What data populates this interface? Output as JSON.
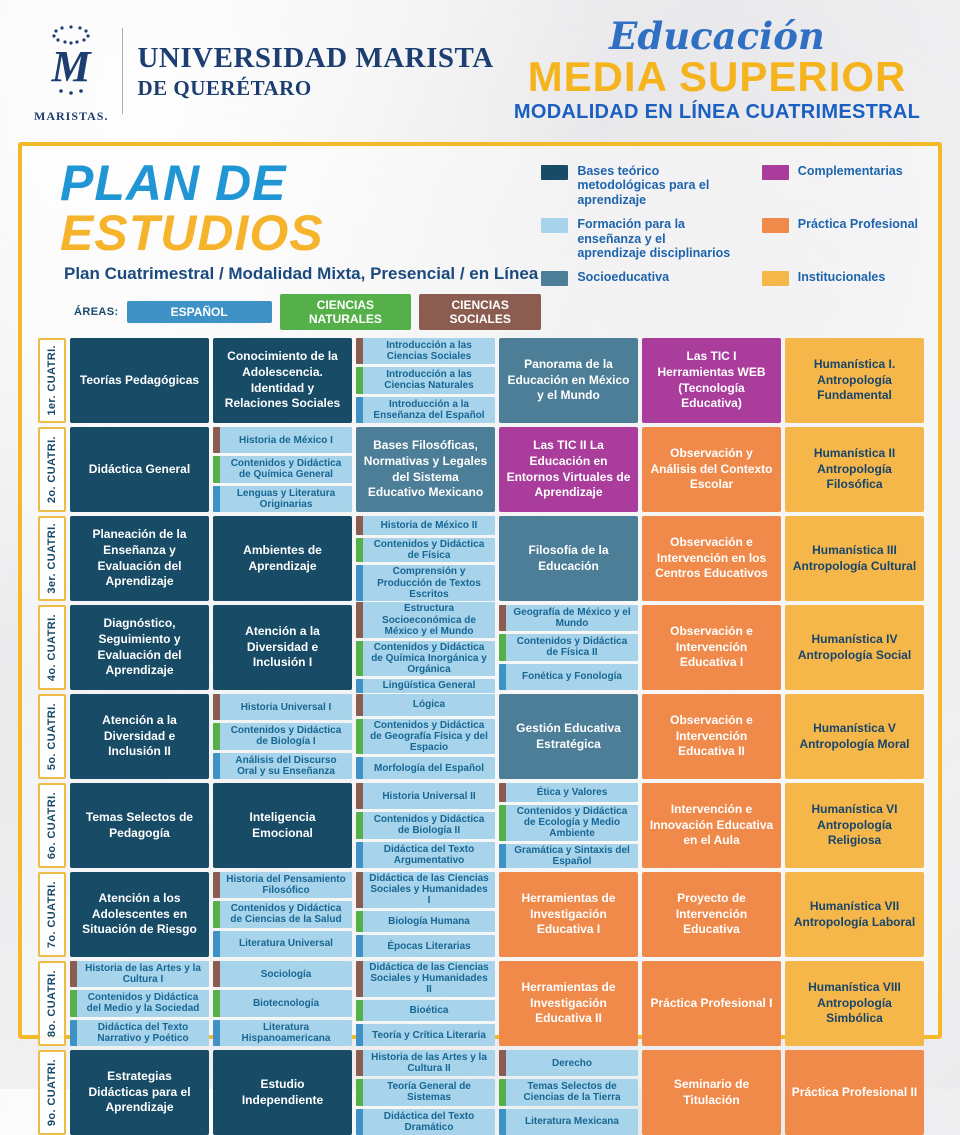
{
  "header": {
    "university_name": "Universidad Marista",
    "university_location": "de Querétaro",
    "logo_caption": "MARISTAS.",
    "program_script": "Educación",
    "program_level": "MEDIA SUPERIOR",
    "program_modality": "MODALIDAD EN LÍNEA CUATRIMESTRAL"
  },
  "plan": {
    "title_part1": "PLAN DE",
    "title_part2": "ESTUDIOS",
    "subtitle": "Plan Cuatrimestral / Modalidad Mixta, Presencial / en Línea",
    "areas_label": "ÁREAS:",
    "areas": [
      {
        "id": "espanol",
        "label": "ESPAÑOL",
        "color": "#3e92c5"
      },
      {
        "id": "naturales",
        "label": "CIENCIAS NATURALES",
        "color": "#55b04a"
      },
      {
        "id": "sociales",
        "label": "CIENCIAS SOCIALES",
        "color": "#8a5d50"
      }
    ],
    "legend": [
      {
        "id": "bases",
        "label": "Bases teórico metodológicas para el aprendizaje",
        "color": "#174b66"
      },
      {
        "id": "formacion",
        "label": "Formación para la enseñanza y el aprendizaje disciplinarios",
        "color": "#a7d3eb"
      },
      {
        "id": "socio",
        "label": "Socioeducativa",
        "color": "#4c7e97"
      },
      {
        "id": "comp",
        "label": "Complementarias",
        "color": "#aa3c9c"
      },
      {
        "id": "practica",
        "label": "Práctica Profesional",
        "color": "#ef8a4b"
      },
      {
        "id": "inst",
        "label": "Institucionales",
        "color": "#f6b74a"
      }
    ],
    "category_colors": {
      "bases": "#174b66",
      "socio": "#4c7e97",
      "comp": "#aa3c9c",
      "practica": "#ef8a4b",
      "inst": "#f6b74a"
    },
    "area_colors": {
      "espanol": "#3e92c5",
      "naturales": "#55b04a",
      "sociales": "#8a5d50"
    }
  },
  "grid": {
    "rows": [
      {
        "label": "1er. CUATRI.",
        "cells": [
          {
            "type": "single",
            "category": "bases",
            "text": "Teorías Pedagógicas"
          },
          {
            "type": "single",
            "category": "bases",
            "text": "Conocimiento de la Adolescencia. Identidad y Relaciones Sociales"
          },
          {
            "type": "stack",
            "items": [
              {
                "area": "sociales",
                "text": "Introducción a las Ciencias Sociales"
              },
              {
                "area": "naturales",
                "text": "Introducción a las Ciencias Naturales"
              },
              {
                "area": "espanol",
                "text": "Introducción a la Enseñanza del Español"
              }
            ]
          },
          {
            "type": "single",
            "category": "socio",
            "text": "Panorama de la Educación en México y el Mundo"
          },
          {
            "type": "single",
            "category": "comp",
            "text": "Las TIC I Herramientas WEB (Tecnología Educativa)"
          },
          {
            "type": "single",
            "category": "inst",
            "text": "Humanística I. Antropología Fundamental"
          }
        ]
      },
      {
        "label": "2o. CUATRI.",
        "cells": [
          {
            "type": "single",
            "category": "bases",
            "text": "Didáctica General"
          },
          {
            "type": "stack",
            "items": [
              {
                "area": "sociales",
                "text": "Historia de México I"
              },
              {
                "area": "naturales",
                "text": "Contenidos y Didáctica de Química General"
              },
              {
                "area": "espanol",
                "text": "Lenguas y Literatura Originarias"
              }
            ]
          },
          {
            "type": "single",
            "category": "socio",
            "text": "Bases Filosóficas, Normativas y Legales del Sistema Educativo Mexicano"
          },
          {
            "type": "single",
            "category": "comp",
            "text": "Las TIC II La Educación en Entornos Virtuales de Aprendizaje"
          },
          {
            "type": "single",
            "category": "practica",
            "text": "Observación y Análisis del Contexto Escolar"
          },
          {
            "type": "single",
            "category": "inst",
            "text": "Humanística II Antropología Filosófica"
          }
        ]
      },
      {
        "label": "3er. CUATRI.",
        "cells": [
          {
            "type": "single",
            "category": "bases",
            "text": "Planeación de la Enseñanza y Evaluación del Aprendizaje"
          },
          {
            "type": "single",
            "category": "bases",
            "text": "Ambientes de Aprendizaje"
          },
          {
            "type": "stack",
            "items": [
              {
                "area": "sociales",
                "text": "Historia de México II"
              },
              {
                "area": "naturales",
                "text": "Contenidos y Didáctica de Física"
              },
              {
                "area": "espanol",
                "text": "Comprensión y Producción de Textos Escritos"
              }
            ]
          },
          {
            "type": "single",
            "category": "socio",
            "text": "Filosofía de la Educación"
          },
          {
            "type": "single",
            "category": "practica",
            "text": "Observación e Intervención en los Centros Educativos"
          },
          {
            "type": "single",
            "category": "inst",
            "text": "Humanística III Antropología Cultural"
          }
        ]
      },
      {
        "label": "4o. CUATRI.",
        "cells": [
          {
            "type": "single",
            "category": "bases",
            "text": "Diagnóstico, Seguimiento y Evaluación del Aprendizaje"
          },
          {
            "type": "single",
            "category": "bases",
            "text": "Atención a la Diversidad e Inclusión I"
          },
          {
            "type": "stack",
            "items": [
              {
                "area": "sociales",
                "text": "Estructura Socioeconómica de México y el Mundo"
              },
              {
                "area": "naturales",
                "text": "Contenidos y Didáctica de Química Inorgánica y Orgánica"
              },
              {
                "area": "espanol",
                "text": "Lingüística General"
              }
            ]
          },
          {
            "type": "stack",
            "items": [
              {
                "area": "sociales",
                "text": "Geografía de México y el Mundo"
              },
              {
                "area": "naturales",
                "text": "Contenidos y Didáctica de Física II"
              },
              {
                "area": "espanol",
                "text": "Fonética y Fonología"
              }
            ]
          },
          {
            "type": "single",
            "category": "practica",
            "text": "Observación e Intervención Educativa I"
          },
          {
            "type": "single",
            "category": "inst",
            "text": "Humanística IV Antropología Social"
          }
        ]
      },
      {
        "label": "5o. CUATRI.",
        "cells": [
          {
            "type": "single",
            "category": "bases",
            "text": "Atención a la Diversidad e Inclusión II"
          },
          {
            "type": "stack",
            "items": [
              {
                "area": "sociales",
                "text": "Historia Universal I"
              },
              {
                "area": "naturales",
                "text": "Contenidos y Didáctica de Biología I"
              },
              {
                "area": "espanol",
                "text": "Análisis del Discurso Oral y su Enseñanza"
              }
            ]
          },
          {
            "type": "stack",
            "items": [
              {
                "area": "sociales",
                "text": "Lógica"
              },
              {
                "area": "naturales",
                "text": "Contenidos y Didáctica de Geografía Física y del Espacio"
              },
              {
                "area": "espanol",
                "text": "Morfología del Español"
              }
            ]
          },
          {
            "type": "single",
            "category": "socio",
            "text": "Gestión Educativa Estratégica"
          },
          {
            "type": "single",
            "category": "practica",
            "text": "Observación e Intervención Educativa II"
          },
          {
            "type": "single",
            "category": "inst",
            "text": "Humanística V Antropología Moral"
          }
        ]
      },
      {
        "label": "6o. CUATRI.",
        "cells": [
          {
            "type": "single",
            "category": "bases",
            "text": "Temas Selectos de Pedagogía"
          },
          {
            "type": "single",
            "category": "bases",
            "text": "Inteligencia Emocional"
          },
          {
            "type": "stack",
            "items": [
              {
                "area": "sociales",
                "text": "Historia Universal II"
              },
              {
                "area": "naturales",
                "text": "Contenidos y Didáctica de Biología II"
              },
              {
                "area": "espanol",
                "text": "Didáctica del Texto Argumentativo"
              }
            ]
          },
          {
            "type": "stack",
            "items": [
              {
                "area": "sociales",
                "text": "Ética y Valores"
              },
              {
                "area": "naturales",
                "text": "Contenidos y Didáctica de Ecología y Medio Ambiente"
              },
              {
                "area": "espanol",
                "text": "Gramática y Sintaxis del Español"
              }
            ]
          },
          {
            "type": "single",
            "category": "practica",
            "text": "Intervención e Innovación Educativa en el Aula"
          },
          {
            "type": "single",
            "category": "inst",
            "text": "Humanística VI Antropología Religiosa"
          }
        ]
      },
      {
        "label": "7o. CUATRI.",
        "cells": [
          {
            "type": "single",
            "category": "bases",
            "text": "Atención a los Adolescentes en Situación de Riesgo"
          },
          {
            "type": "stack",
            "items": [
              {
                "area": "sociales",
                "text": "Historia del Pensamiento Filosófico"
              },
              {
                "area": "naturales",
                "text": "Contenidos y Didáctica de Ciencias de la Salud"
              },
              {
                "area": "espanol",
                "text": "Literatura Universal"
              }
            ]
          },
          {
            "type": "stack",
            "items": [
              {
                "area": "sociales",
                "text": "Didáctica de las Ciencias Sociales y Humanidades I"
              },
              {
                "area": "naturales",
                "text": "Biología Humana"
              },
              {
                "area": "espanol",
                "text": "Épocas Literarias"
              }
            ]
          },
          {
            "type": "single",
            "category": "practica",
            "text": "Herramientas de Investigación Educativa I"
          },
          {
            "type": "single",
            "category": "practica",
            "text": "Proyecto de Intervención Educativa"
          },
          {
            "type": "single",
            "category": "inst",
            "text": "Humanística VII Antropología Laboral"
          }
        ]
      },
      {
        "label": "8o. CUATRI.",
        "cells": [
          {
            "type": "stack",
            "items": [
              {
                "area": "sociales",
                "text": "Historia de las Artes y la Cultura I"
              },
              {
                "area": "naturales",
                "text": "Contenidos y Didáctica del Medio y la Sociedad"
              },
              {
                "area": "espanol",
                "text": "Didáctica del Texto Narrativo y Poético"
              }
            ]
          },
          {
            "type": "stack",
            "items": [
              {
                "area": "sociales",
                "text": "Sociología"
              },
              {
                "area": "naturales",
                "text": "Biotecnología"
              },
              {
                "area": "espanol",
                "text": "Literatura Hispanoamericana"
              }
            ]
          },
          {
            "type": "stack",
            "items": [
              {
                "area": "sociales",
                "text": "Didáctica de las Ciencias Sociales y Humanidades II"
              },
              {
                "area": "naturales",
                "text": "Bioética"
              },
              {
                "area": "espanol",
                "text": "Teoría y Crítica Literaria"
              }
            ]
          },
          {
            "type": "single",
            "category": "practica",
            "text": "Herramientas de Investigación Educativa II"
          },
          {
            "type": "single",
            "category": "practica",
            "text": "Práctica Profesional I"
          },
          {
            "type": "single",
            "category": "inst",
            "text": "Humanística VIII Antropología Simbólica"
          }
        ]
      },
      {
        "label": "9o. CUATRI.",
        "cells": [
          {
            "type": "single",
            "category": "bases",
            "text": "Estrategias Didácticas para el Aprendizaje"
          },
          {
            "type": "single",
            "category": "bases",
            "text": "Estudio Independiente"
          },
          {
            "type": "stack",
            "items": [
              {
                "area": "sociales",
                "text": "Historia de las Artes y la Cultura II"
              },
              {
                "area": "naturales",
                "text": "Teoría General de Sistemas"
              },
              {
                "area": "espanol",
                "text": "Didáctica del Texto Dramático"
              }
            ]
          },
          {
            "type": "stack",
            "items": [
              {
                "area": "sociales",
                "text": "Derecho"
              },
              {
                "area": "naturales",
                "text": "Temas Selectos de Ciencias de la Tierra"
              },
              {
                "area": "espanol",
                "text": "Literatura Mexicana"
              }
            ]
          },
          {
            "type": "single",
            "category": "practica",
            "text": "Seminario de Titulación"
          },
          {
            "type": "single",
            "category": "practica",
            "text": "Práctica Profesional II"
          }
        ]
      }
    ]
  }
}
